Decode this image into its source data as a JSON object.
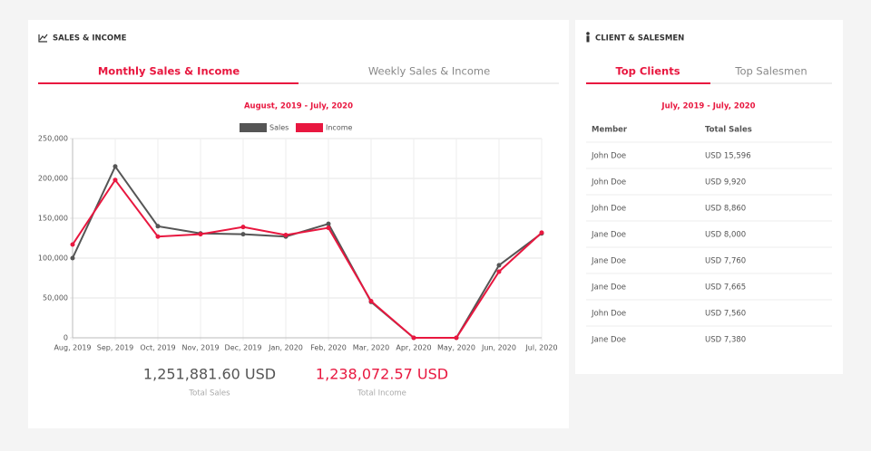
{
  "sales_income": {
    "title": "SALES & INCOME",
    "tabs": [
      "Monthly Sales & Income",
      "Weekly Sales & Income"
    ],
    "date_range": "August, 2019 - July, 2020",
    "totals": [
      {
        "value": "1,251,881.60 USD",
        "label": "Total Sales"
      },
      {
        "value": "1,238,072.57 USD",
        "label": "Total Income"
      }
    ]
  },
  "chart_data": {
    "type": "line",
    "categories": [
      "Aug, 2019",
      "Sep, 2019",
      "Oct, 2019",
      "Nov, 2019",
      "Dec, 2019",
      "Jan, 2020",
      "Feb, 2020",
      "Mar, 2020",
      "Apr, 2020",
      "May, 2020",
      "Jun, 2020",
      "Jul, 2020"
    ],
    "series": [
      {
        "name": "Sales",
        "color": "#555555",
        "values": [
          100000,
          215000,
          140000,
          131000,
          130000,
          127000,
          143000,
          45000,
          0,
          0,
          91000,
          131000
        ]
      },
      {
        "name": "Income",
        "color": "#e8173f",
        "values": [
          117000,
          198000,
          127000,
          130000,
          139000,
          129000,
          138000,
          46000,
          0,
          0,
          83000,
          132000
        ]
      }
    ],
    "ylim": [
      0,
      250000
    ],
    "yticks": [
      0,
      {
        "value": 50000,
        "label": "50,000"
      },
      {
        "value": 100000,
        "label": "100,000"
      },
      {
        "value": 150000,
        "label": "150,000"
      },
      {
        "value": 200000,
        "label": "200,000"
      },
      {
        "value": 250000,
        "label": "250,000"
      }
    ],
    "grid": true,
    "legend": "top"
  },
  "client_salesmen": {
    "title": "CLIENT & SALESMEN",
    "tabs": [
      "Top Clients",
      "Top Salesmen"
    ],
    "date_range": "July, 2019 - July, 2020",
    "table": {
      "columns": [
        "Member",
        "Total Sales"
      ],
      "rows": [
        [
          "John Doe",
          "USD 15,596"
        ],
        [
          "John Doe",
          "USD 9,920"
        ],
        [
          "John Doe",
          "USD 8,860"
        ],
        [
          "Jane Doe",
          "USD 8,000"
        ],
        [
          "Jane Doe",
          "USD 7,760"
        ],
        [
          "Jane Doe",
          "USD 7,665"
        ],
        [
          "John Doe",
          "USD 7,560"
        ],
        [
          "Jane Doe",
          "USD 7,380"
        ]
      ]
    }
  }
}
